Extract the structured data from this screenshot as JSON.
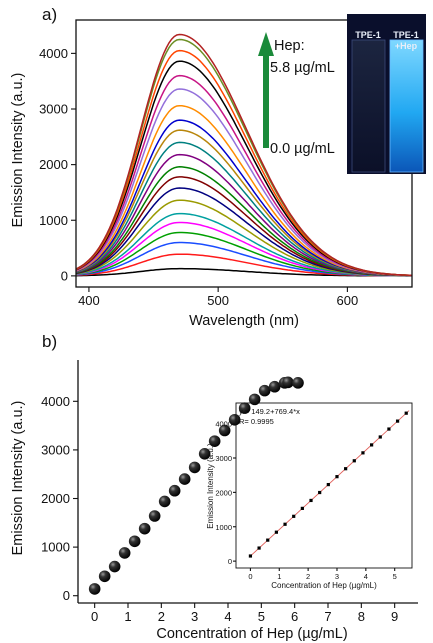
{
  "chart_data": [
    {
      "panel": "a)",
      "type": "line",
      "xlabel": "Wavelength (nm)",
      "ylabel": "Emission Intensity (a.u.)",
      "xlim": [
        390,
        650
      ],
      "ylim": [
        -200,
        4600
      ],
      "xticks": [
        400,
        500,
        600
      ],
      "yticks": [
        0,
        1000,
        2000,
        3000,
        4000
      ],
      "peak_x": 470,
      "series_peaks": [
        130,
        390,
        600,
        780,
        960,
        1120,
        1360,
        1580,
        1780,
        1960,
        2180,
        2400,
        2620,
        2800,
        3060,
        3360,
        3600,
        3860,
        4050,
        4250,
        4340
      ],
      "series_colors": [
        "#000000",
        "#ff1a1a",
        "#1a4dff",
        "#00a000",
        "#ff00ff",
        "#00a0a0",
        "#9a9a00",
        "#000080",
        "#800000",
        "#008000",
        "#800080",
        "#008080",
        "#b8860b",
        "#0000cd",
        "#ff8c00",
        "#9370db",
        "#c71585",
        "#000000",
        "#ff4500",
        "#6b8e23",
        "#b22222"
      ],
      "arrow_label_top": "Hep:",
      "arrow_label_max": "5.8 µg/mL",
      "arrow_label_min": "0.0 µg/mL",
      "arrow_color": "#1a8a3a",
      "photo_labels": [
        "TPE-1",
        "TPE-1\n+Hep"
      ]
    },
    {
      "panel": "b)",
      "type": "scatter",
      "xlabel": "Concentration of Hep (µg/mL)",
      "ylabel": "Emission Intensity (a.u.)",
      "xlim": [
        -0.5,
        9.7
      ],
      "ylim": [
        -150,
        4850
      ],
      "xticks": [
        0,
        1,
        2,
        3,
        4,
        5,
        6,
        7,
        8,
        9
      ],
      "yticks": [
        0,
        1000,
        2000,
        3000,
        4000
      ],
      "x": [
        0,
        0.3,
        0.6,
        0.9,
        1.2,
        1.5,
        1.8,
        2.1,
        2.4,
        2.7,
        3.0,
        3.3,
        3.6,
        3.9,
        4.2,
        4.5,
        4.8,
        5.1,
        5.4,
        5.7,
        5.8,
        6.1
      ],
      "y": [
        140,
        400,
        600,
        880,
        1120,
        1380,
        1640,
        1940,
        2160,
        2400,
        2640,
        2920,
        3180,
        3400,
        3620,
        3860,
        4040,
        4220,
        4300,
        4380,
        4390,
        4380
      ],
      "inset": {
        "type": "scatter",
        "xlabel": "Concentration of Hep (µg/mL)",
        "ylabel": "Emission Intensity (a.u.)",
        "equation": "y = 149.2+769.4*x",
        "r_text": "R= 0.9995",
        "xlim": [
          -0.5,
          5.6
        ],
        "ylim": [
          -200,
          4600
        ],
        "xticks": [
          0,
          1,
          2,
          3,
          4,
          5
        ],
        "yticks": [
          0,
          1000,
          2000,
          3000,
          4000
        ],
        "x": [
          0,
          0.3,
          0.6,
          0.9,
          1.2,
          1.5,
          1.8,
          2.1,
          2.4,
          2.7,
          3.0,
          3.3,
          3.6,
          3.9,
          4.2,
          4.5,
          4.8,
          5.1,
          5.4
        ],
        "fit": {
          "intercept": 149.2,
          "slope": 769.4
        }
      }
    }
  ]
}
